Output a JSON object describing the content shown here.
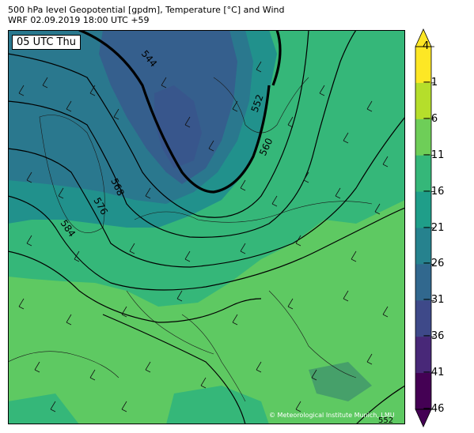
{
  "title_line1": "500 hPa level Geopotential [gpdm], Temperature [°C] and Wind",
  "title_line2": "WRF 02.09.2019 18:00 UTC +59",
  "time_label": "05 UTC Thu",
  "credit": "© Meteorological Institute Munich, LMU",
  "colorbar": {
    "ticks": [
      "4",
      "−1",
      "−6",
      "−11",
      "−16",
      "−21",
      "−26",
      "−31",
      "−36",
      "−41",
      "−46"
    ],
    "colors": [
      "#fde725",
      "#b5de2b",
      "#6ece58",
      "#35b779",
      "#1f9e89",
      "#26828e",
      "#31688e",
      "#3e4989",
      "#482878",
      "#440154"
    ]
  },
  "contour_labels": [
    "544",
    "552",
    "560",
    "568",
    "576",
    "584",
    "552"
  ]
}
